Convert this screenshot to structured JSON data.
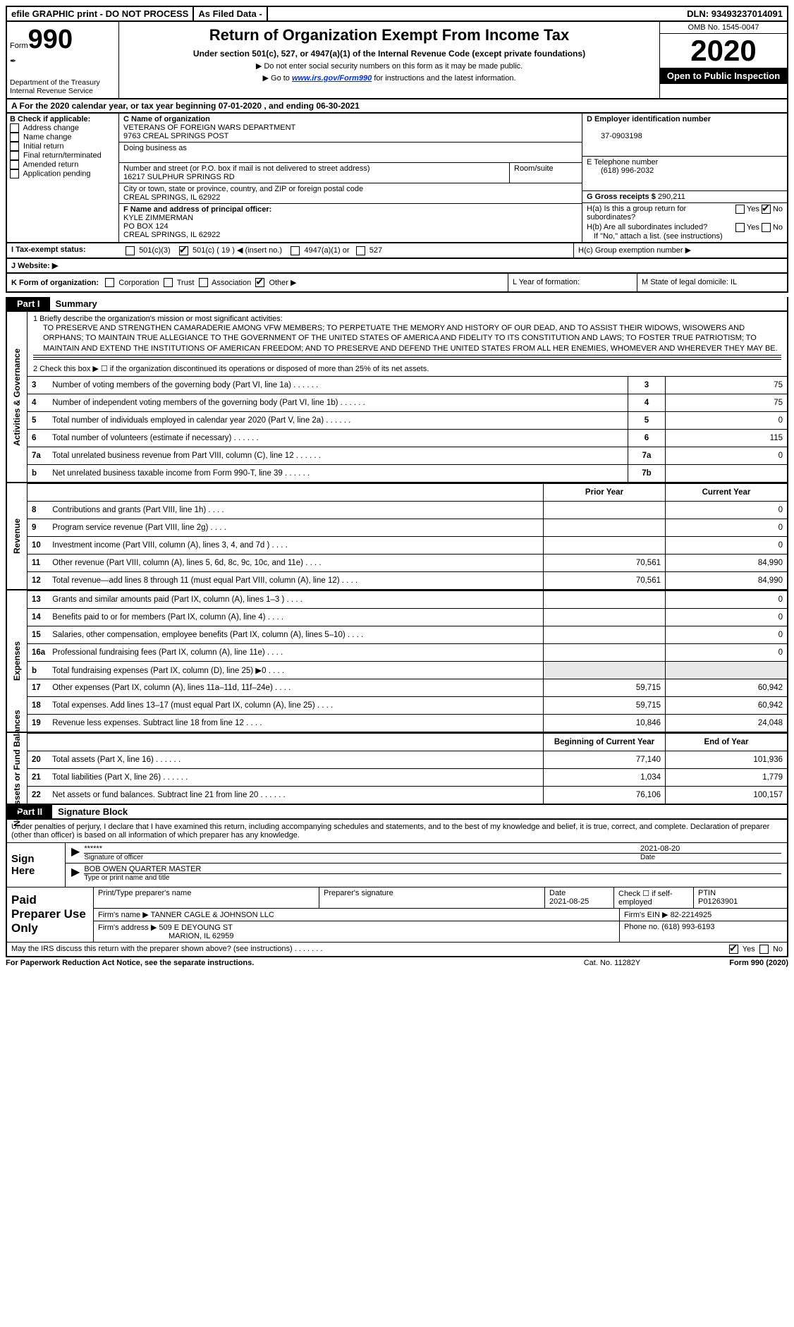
{
  "topbar": {
    "efile": "efile GRAPHIC print - DO NOT PROCESS",
    "asfiled": "As Filed Data -",
    "dln_label": "DLN:",
    "dln": "93493237014091"
  },
  "header": {
    "form_label": "Form",
    "form_num": "990",
    "dept": "Department of the Treasury\nInternal Revenue Service",
    "title": "Return of Organization Exempt From Income Tax",
    "sub": "Under section 501(c), 527, or 4947(a)(1) of the Internal Revenue Code (except private foundations)",
    "note1": "▶ Do not enter social security numbers on this form as it may be made public.",
    "note2_pre": "▶ Go to ",
    "note2_link": "www.irs.gov/Form990",
    "note2_post": " for instructions and the latest information.",
    "omb": "OMB No. 1545-0047",
    "year": "2020",
    "open": "Open to Public Inspection"
  },
  "line_a": "A   For the 2020 calendar year, or tax year beginning 07-01-2020   , and ending 06-30-2021",
  "col_b": {
    "label": "B Check if applicable:",
    "items": [
      "Address change",
      "Name change",
      "Initial return",
      "Final return/terminated",
      "Amended return",
      "Application pending"
    ]
  },
  "col_c": {
    "name_label": "C Name of organization",
    "name1": "VETERANS OF FOREIGN WARS DEPARTMENT",
    "name2": "9763 CREAL SPRINGS POST",
    "dba_label": "Doing business as",
    "addr_label": "Number and street (or P.O. box if mail is not delivered to street address)",
    "room_label": "Room/suite",
    "addr": "16217 SULPHUR SPRINGS RD",
    "city_label": "City or town, state or province, country, and ZIP or foreign postal code",
    "city": "CREAL SPRINGS, IL  62922",
    "f_label": "F  Name and address of principal officer:",
    "officer1": "KYLE ZIMMERMAN",
    "officer2": "PO BOX 124",
    "officer3": "CREAL SPRINGS, IL  62922"
  },
  "col_d": {
    "ein_label": "D Employer identification number",
    "ein": "37-0903198",
    "phone_label": "E Telephone number",
    "phone": "(618) 996-2032",
    "gross_label": "G Gross receipts $",
    "gross": "290,211",
    "ha": "H(a)  Is this a group return for subordinates?",
    "hb": "H(b)  Are all subordinates included?",
    "hb_note": "If \"No,\" attach a list. (see instructions)",
    "hc": "H(c)  Group exemption number ▶",
    "yes": "Yes",
    "no": "No"
  },
  "row_i": {
    "label": "I   Tax-exempt status:",
    "o1": "501(c)(3)",
    "o2": "501(c) ( 19 ) ◀ (insert no.)",
    "o3": "4947(a)(1) or",
    "o4": "527"
  },
  "row_j": "J   Website: ▶",
  "row_k": {
    "label": "K Form of organization:",
    "opts": [
      "Corporation",
      "Trust",
      "Association",
      "Other ▶"
    ],
    "l": "L Year of formation:",
    "m": "M State of legal domicile: IL"
  },
  "part1": {
    "tab": "Part I",
    "title": "Summary"
  },
  "mission": {
    "label": "1  Briefly describe the organization's mission or most significant activities:",
    "text": "TO PRESERVE AND STRENGTHEN CAMARADERIE AMONG VFW MEMBERS; TO PERPETUATE THE MEMORY AND HISTORY OF OUR DEAD, AND TO ASSIST THEIR WIDOWS, WISOWERS AND ORPHANS; TO MAINTAIN TRUE ALLEGIANCE TO THE GOVERNMENT OF THE UNITED STATES OF AMERICA AND FIDELITY TO ITS CONSTITUTION AND LAWS; TO FOSTER TRUE PATRIOTISM; TO MAINTAIN AND EXTEND THE INSTITUTIONS OF AMERICAN FREEDOM; AND TO PRESERVE AND DEFEND THE UNITED STATES FROM ALL HER ENEMIES, WHOMEVER AND WHEREVER THEY MAY BE."
  },
  "line2": "2   Check this box ▶ ☐ if the organization discontinued its operations or disposed of more than 25% of its net assets.",
  "gov_lines": [
    {
      "n": "3",
      "desc": "Number of voting members of the governing body (Part VI, line 1a)",
      "num": "3",
      "val": "75"
    },
    {
      "n": "4",
      "desc": "Number of independent voting members of the governing body (Part VI, line 1b)",
      "num": "4",
      "val": "75"
    },
    {
      "n": "5",
      "desc": "Total number of individuals employed in calendar year 2020 (Part V, line 2a)",
      "num": "5",
      "val": "0"
    },
    {
      "n": "6",
      "desc": "Total number of volunteers (estimate if necessary)",
      "num": "6",
      "val": "115"
    },
    {
      "n": "7a",
      "desc": "Total unrelated business revenue from Part VIII, column (C), line 12",
      "num": "7a",
      "val": "0"
    },
    {
      "n": "b",
      "desc": "Net unrelated business taxable income from Form 990-T, line 39",
      "num": "7b",
      "val": ""
    }
  ],
  "col_headers": {
    "prior": "Prior Year",
    "current": "Current Year",
    "begin": "Beginning of Current Year",
    "end": "End of Year"
  },
  "rev_lines": [
    {
      "n": "8",
      "desc": "Contributions and grants (Part VIII, line 1h)",
      "p": "",
      "c": "0"
    },
    {
      "n": "9",
      "desc": "Program service revenue (Part VIII, line 2g)",
      "p": "",
      "c": "0"
    },
    {
      "n": "10",
      "desc": "Investment income (Part VIII, column (A), lines 3, 4, and 7d )",
      "p": "",
      "c": "0"
    },
    {
      "n": "11",
      "desc": "Other revenue (Part VIII, column (A), lines 5, 6d, 8c, 9c, 10c, and 11e)",
      "p": "70,561",
      "c": "84,990"
    },
    {
      "n": "12",
      "desc": "Total revenue—add lines 8 through 11 (must equal Part VIII, column (A), line 12)",
      "p": "70,561",
      "c": "84,990"
    }
  ],
  "exp_lines": [
    {
      "n": "13",
      "desc": "Grants and similar amounts paid (Part IX, column (A), lines 1–3 )",
      "p": "",
      "c": "0"
    },
    {
      "n": "14",
      "desc": "Benefits paid to or for members (Part IX, column (A), line 4)",
      "p": "",
      "c": "0"
    },
    {
      "n": "15",
      "desc": "Salaries, other compensation, employee benefits (Part IX, column (A), lines 5–10)",
      "p": "",
      "c": "0"
    },
    {
      "n": "16a",
      "desc": "Professional fundraising fees (Part IX, column (A), line 11e)",
      "p": "",
      "c": "0"
    },
    {
      "n": "b",
      "desc": "Total fundraising expenses (Part IX, column (D), line 25) ▶0",
      "p": "shade",
      "c": "shade"
    },
    {
      "n": "17",
      "desc": "Other expenses (Part IX, column (A), lines 11a–11d, 11f–24e)",
      "p": "59,715",
      "c": "60,942"
    },
    {
      "n": "18",
      "desc": "Total expenses. Add lines 13–17 (must equal Part IX, column (A), line 25)",
      "p": "59,715",
      "c": "60,942"
    },
    {
      "n": "19",
      "desc": "Revenue less expenses. Subtract line 18 from line 12",
      "p": "10,846",
      "c": "24,048"
    }
  ],
  "net_lines": [
    {
      "n": "20",
      "desc": "Total assets (Part X, line 16)",
      "p": "77,140",
      "c": "101,936"
    },
    {
      "n": "21",
      "desc": "Total liabilities (Part X, line 26)",
      "p": "1,034",
      "c": "1,779"
    },
    {
      "n": "22",
      "desc": "Net assets or fund balances. Subtract line 21 from line 20",
      "p": "76,106",
      "c": "100,157"
    }
  ],
  "part2": {
    "tab": "Part II",
    "title": "Signature Block"
  },
  "sig": {
    "declaration": "Under penalties of perjury, I declare that I have examined this return, including accompanying schedules and statements, and to the best of my knowledge and belief, it is true, correct, and complete. Declaration of preparer (other than officer) is based on all information of which preparer has any knowledge.",
    "sign_here": "Sign Here",
    "stars": "******",
    "date": "2021-08-20",
    "sig_label": "Signature of officer",
    "date_label": "Date",
    "name": "BOB OWEN  QUARTER MASTER",
    "name_label": "Type or print name and title"
  },
  "paid": {
    "label": "Paid Preparer Use Only",
    "h1": "Print/Type preparer's name",
    "h2": "Preparer's signature",
    "h3": "Date",
    "date": "2021-08-25",
    "h4": "Check ☐ if self-employed",
    "h5": "PTIN",
    "ptin": "P01263901",
    "firm_label": "Firm's name    ▶",
    "firm": "TANNER CAGLE & JOHNSON LLC",
    "ein_label": "Firm's EIN ▶",
    "ein": "82-2214925",
    "addr_label": "Firm's address ▶",
    "addr1": "509 E DEYOUNG ST",
    "addr2": "MARION, IL  62959",
    "phone_label": "Phone no.",
    "phone": "(618) 993-6193"
  },
  "discuss": "May the IRS discuss this return with the preparer shown above? (see instructions)",
  "footer": {
    "left": "For Paperwork Reduction Act Notice, see the separate instructions.",
    "mid": "Cat. No. 11282Y",
    "right": "Form 990 (2020)"
  },
  "side_labels": {
    "gov": "Activities & Governance",
    "rev": "Revenue",
    "exp": "Expenses",
    "net": "Net Assets or Fund Balances"
  }
}
